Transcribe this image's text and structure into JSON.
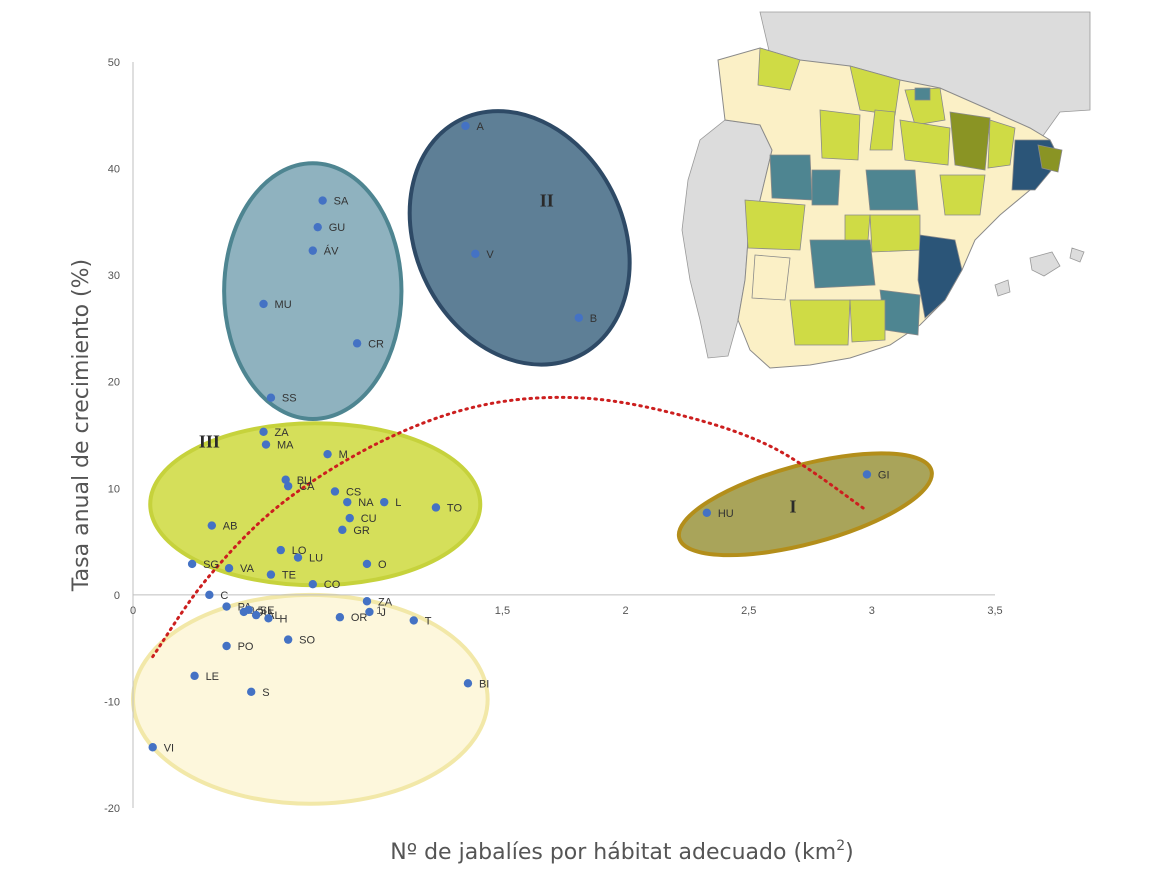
{
  "chart_data": {
    "type": "scatter",
    "xlabel": "Nº de jabalíes por hábitat adecuado (km",
    "xlabel_sup": "2",
    "xlabel_close": ")",
    "ylabel": "Tasa anual de crecimiento (%)",
    "xlim": [
      0,
      3.5
    ],
    "ylim": [
      -20,
      50
    ],
    "x_ticks": [
      "0",
      "0,5",
      "1",
      "1,5",
      "2",
      "2,5",
      "3",
      "3,5"
    ],
    "x_tick_values": [
      0,
      0.5,
      1,
      1.5,
      2,
      2.5,
      3,
      3.5
    ],
    "y_ticks": [
      "-20",
      "-10",
      "0",
      "10",
      "20",
      "30",
      "40",
      "50"
    ],
    "y_tick_values": [
      -20,
      -10,
      0,
      10,
      20,
      30,
      40,
      50
    ],
    "point_color": "#4472c4",
    "points": [
      {
        "label": "A",
        "x": 1.35,
        "y": 44
      },
      {
        "label": "V",
        "x": 1.39,
        "y": 32
      },
      {
        "label": "B",
        "x": 1.81,
        "y": 26
      },
      {
        "label": "SA",
        "x": 0.77,
        "y": 37
      },
      {
        "label": "GU",
        "x": 0.75,
        "y": 34.5
      },
      {
        "label": "ÁV",
        "x": 0.73,
        "y": 32.3
      },
      {
        "label": "MU",
        "x": 0.53,
        "y": 27.3
      },
      {
        "label": "CR",
        "x": 0.91,
        "y": 23.6
      },
      {
        "label": "SS",
        "x": 0.56,
        "y": 18.5
      },
      {
        "label": "ZA",
        "x": 0.53,
        "y": 15.3
      },
      {
        "label": "MA",
        "x": 0.54,
        "y": 14.1
      },
      {
        "label": "M",
        "x": 0.79,
        "y": 13.2
      },
      {
        "label": "BU",
        "x": 0.62,
        "y": 10.8
      },
      {
        "label": "CA",
        "x": 0.63,
        "y": 10.2
      },
      {
        "label": "CS",
        "x": 0.82,
        "y": 9.7
      },
      {
        "label": "NA",
        "x": 0.87,
        "y": 8.7
      },
      {
        "label": "L",
        "x": 1.02,
        "y": 8.7
      },
      {
        "label": "TO",
        "x": 1.23,
        "y": 8.2
      },
      {
        "label": "AB",
        "x": 0.32,
        "y": 6.5
      },
      {
        "label": "CU",
        "x": 0.88,
        "y": 7.2
      },
      {
        "label": "GR",
        "x": 0.85,
        "y": 6.1
      },
      {
        "label": "LO",
        "x": 0.6,
        "y": 4.2
      },
      {
        "label": "LU",
        "x": 0.67,
        "y": 3.5
      },
      {
        "label": "SG",
        "x": 0.24,
        "y": 2.9
      },
      {
        "label": "VA",
        "x": 0.39,
        "y": 2.5
      },
      {
        "label": "O",
        "x": 0.95,
        "y": 2.9
      },
      {
        "label": "TE",
        "x": 0.56,
        "y": 1.9
      },
      {
        "label": "CO",
        "x": 0.73,
        "y": 1.0
      },
      {
        "label": "C",
        "x": 0.31,
        "y": 0.0
      },
      {
        "label": "ZA",
        "x": 0.95,
        "y": -0.6
      },
      {
        "label": "PA",
        "x": 0.38,
        "y": -1.1
      },
      {
        "label": "SE",
        "x": 0.47,
        "y": -1.4
      },
      {
        "label": "OU",
        "x": 0.45,
        "y": -1.6
      },
      {
        "label": "AL",
        "x": 0.5,
        "y": -1.9
      },
      {
        "label": "H",
        "x": 0.55,
        "y": -2.2
      },
      {
        "label": "OR",
        "x": 0.84,
        "y": -2.1
      },
      {
        "label": "J",
        "x": 0.96,
        "y": -1.6
      },
      {
        "label": "T",
        "x": 1.14,
        "y": -2.4
      },
      {
        "label": "SO",
        "x": 0.63,
        "y": -4.2
      },
      {
        "label": "PO",
        "x": 0.38,
        "y": -4.8
      },
      {
        "label": "LE",
        "x": 0.25,
        "y": -7.6
      },
      {
        "label": "S",
        "x": 0.48,
        "y": -9.1
      },
      {
        "label": "BI",
        "x": 1.36,
        "y": -8.3
      },
      {
        "label": "VI",
        "x": 0.08,
        "y": -14.3
      },
      {
        "label": "HU",
        "x": 2.33,
        "y": 7.7
      },
      {
        "label": "GI",
        "x": 2.98,
        "y": 11.3
      }
    ],
    "groups": [
      {
        "label": "II",
        "fill": "#5e7f96",
        "stroke": "#2e4a66",
        "cx": 1.57,
        "cy": 33.5,
        "rx": 0.42,
        "ry": 12.4,
        "rotate": -27,
        "label_x": 1.68,
        "label_y": 37
      },
      {
        "label": "",
        "fill": "#8fb2bf",
        "stroke": "#4e8591",
        "cx": 0.73,
        "cy": 28.5,
        "rx": 0.36,
        "ry": 12.0,
        "rotate": 0
      },
      {
        "label": "III",
        "fill": "#d5df5a",
        "stroke": "#c6d23c",
        "cx": 0.74,
        "cy": 8.5,
        "rx": 0.67,
        "ry": 7.6,
        "rotate": 0,
        "label_x": 0.31,
        "label_y": 14.4
      },
      {
        "label": "I",
        "fill": "#a9a45a",
        "stroke": "#b38e1a",
        "cx": 2.73,
        "cy": 8.5,
        "rx": 0.53,
        "ry": 3.7,
        "rotate": -15,
        "label_x": 2.68,
        "label_y": 8.3
      },
      {
        "label": "",
        "fill": "#fdf7dc",
        "stroke": "#f2e8a8",
        "cx": 0.72,
        "cy": -9.8,
        "rx": 0.72,
        "ry": 9.8,
        "rotate": 0
      }
    ],
    "trend": [
      {
        "x": 0.08,
        "y": -5.8
      },
      {
        "x": 0.3,
        "y": 1.5
      },
      {
        "x": 0.6,
        "y": 8.5
      },
      {
        "x": 1.0,
        "y": 14.3
      },
      {
        "x": 1.4,
        "y": 17.7
      },
      {
        "x": 1.8,
        "y": 18.5
      },
      {
        "x": 2.2,
        "y": 17.0
      },
      {
        "x": 2.6,
        "y": 13.8
      },
      {
        "x": 2.98,
        "y": 7.9
      }
    ],
    "trend_color": "#cc1f1f",
    "map_colors": {
      "sea": "#ffffff",
      "neighbors": "#dcdcdc",
      "class_I": "#8a9424",
      "class_II": "#2b5578",
      "class_III": "#cfdb45",
      "class_blue": "#4e8591",
      "class_other": "#fbf0c6"
    }
  }
}
